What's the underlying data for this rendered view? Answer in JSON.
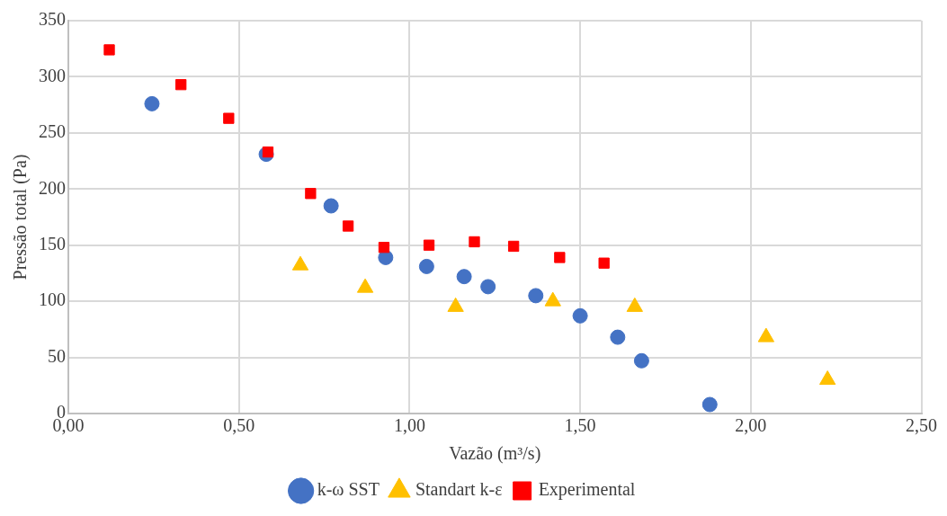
{
  "chart_data": {
    "type": "scatter",
    "xlabel": "Vazão (m³/s)",
    "ylabel": "Pressão total (Pa)",
    "xlim": [
      0,
      2.5
    ],
    "xticks": [
      {
        "value": 0,
        "label": "0,00"
      },
      {
        "value": 0.5,
        "label": "0,50"
      },
      {
        "value": 1,
        "label": "1,00"
      },
      {
        "value": 1.5,
        "label": "1,50"
      },
      {
        "value": 2,
        "label": "2,00"
      },
      {
        "value": 2.5,
        "label": "2,50"
      }
    ],
    "ylim": [
      0,
      350
    ],
    "yticks": [
      0,
      50,
      100,
      150,
      200,
      250,
      300,
      350
    ],
    "grid": true,
    "legend": "bottom",
    "series": [
      {
        "name": "k-ω SST",
        "color": "#4472c4",
        "marker": "circle",
        "x": [
          0.245,
          0.58,
          0.77,
          0.93,
          1.05,
          1.16,
          1.23,
          1.37,
          1.5,
          1.61,
          1.68,
          1.88
        ],
        "values": [
          276,
          231,
          185,
          139,
          131,
          122,
          113,
          105,
          87,
          68,
          47,
          8
        ]
      },
      {
        "name": "Standart k-ε",
        "color": "#ffc000",
        "marker": "triangle",
        "x": [
          0.68,
          0.87,
          1.135,
          1.42,
          1.66,
          2.045,
          2.225
        ],
        "values": [
          132,
          112,
          95,
          100,
          95,
          68,
          30
        ]
      },
      {
        "name": "Experimental",
        "color": "#ff0000",
        "marker": "square",
        "x": [
          0.12,
          0.33,
          0.47,
          0.585,
          0.71,
          0.82,
          0.925,
          1.057,
          1.19,
          1.305,
          1.44,
          1.57
        ],
        "values": [
          324,
          293,
          263,
          233,
          196,
          167,
          148,
          150,
          153,
          149,
          139,
          134
        ]
      }
    ]
  }
}
